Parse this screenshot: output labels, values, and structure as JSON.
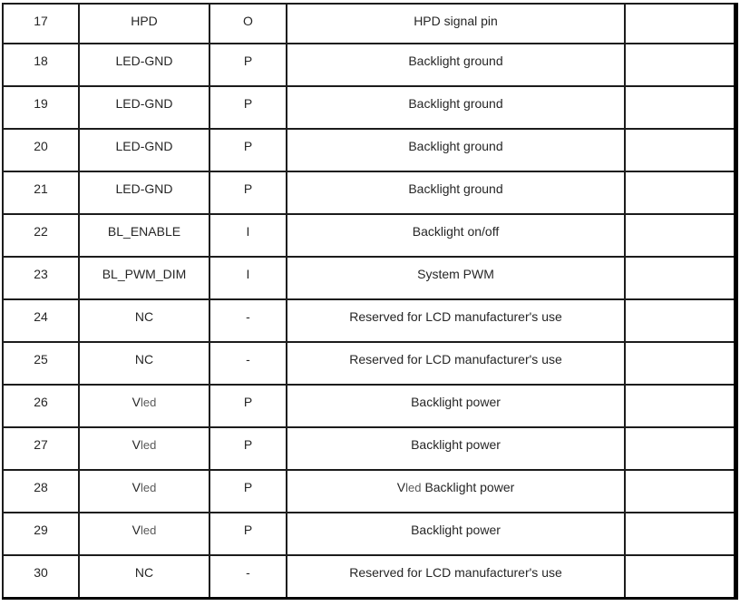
{
  "colors": {
    "background": "#ffffff",
    "border": "#000000",
    "text": "#262626",
    "subscript_text": "#595959"
  },
  "table": {
    "description": "LCD pin assignment table fragment, pins 17-30, no header row visible",
    "columns": [
      "pin",
      "signal_name",
      "io_type",
      "description",
      "notes"
    ],
    "rows": [
      {
        "pin": "17",
        "name": "HPD",
        "type": "O",
        "desc": "HPD signal pin"
      },
      {
        "pin": "18",
        "name": "LED-GND",
        "type": "P",
        "desc": "Backlight ground"
      },
      {
        "pin": "19",
        "name": "LED-GND",
        "type": "P",
        "desc": "Backlight ground"
      },
      {
        "pin": "20",
        "name": "LED-GND",
        "type": "P",
        "desc": "Backlight ground"
      },
      {
        "pin": "21",
        "name": "LED-GND",
        "type": "P",
        "desc": "Backlight ground"
      },
      {
        "pin": "22",
        "name": "BL_ENABLE",
        "type": "I",
        "desc": "Backlight on/off"
      },
      {
        "pin": "23",
        "name": "BL_PWM_DIM",
        "type": "I",
        "desc": "System PWM"
      },
      {
        "pin": "24",
        "name": "NC",
        "type": "-",
        "desc": "Reserved for LCD manufacturer's use"
      },
      {
        "pin": "25",
        "name": "NC",
        "type": "-",
        "desc": "Reserved for LCD manufacturer's use"
      },
      {
        "pin": "26",
        "name_v": "V",
        "name_led": "led",
        "type": "P",
        "desc": "Backlight power"
      },
      {
        "pin": "27",
        "name_v": "V",
        "name_led": "led",
        "type": "P",
        "desc": "Backlight power"
      },
      {
        "pin": "28",
        "name_v": "V",
        "name_led": "led",
        "type": "P",
        "desc_v": "V",
        "desc_led": "led",
        "desc": "Backlight power"
      },
      {
        "pin": "29",
        "name_v": "V",
        "name_led": "led",
        "type": "P",
        "desc": "Backlight power"
      },
      {
        "pin": "30",
        "name": "NC",
        "type": "-",
        "desc": "Reserved for LCD manufacturer's use"
      }
    ],
    "notes_cell": ""
  }
}
